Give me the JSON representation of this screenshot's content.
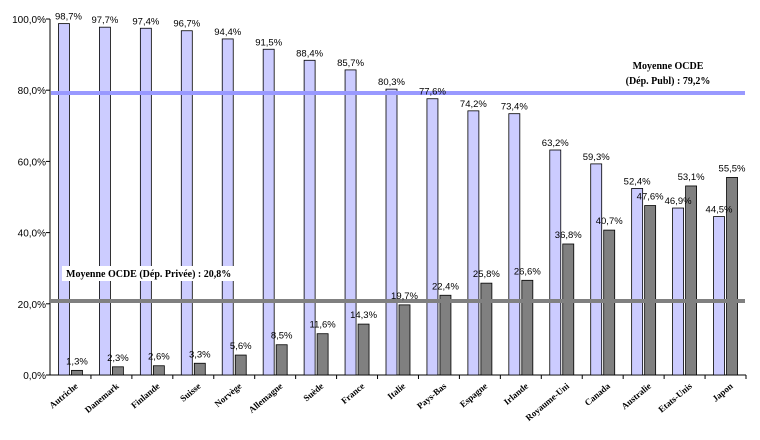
{
  "chart_data": {
    "type": "bar",
    "title": "",
    "xlabel": "",
    "ylabel": "",
    "ylim": [
      0,
      100
    ],
    "yticks": [
      "0,0%",
      "20,0%",
      "40,0%",
      "60,0%",
      "80,0%",
      "100,0%"
    ],
    "categories": [
      "Autriche",
      "Danemark",
      "Finlande",
      "Suisse",
      "Norvège",
      "Allemagne",
      "Suède",
      "France",
      "Italie",
      "Pays-Bas",
      "Espagne",
      "Irlande",
      "Royaume-Uni",
      "Canada",
      "Australie",
      "Etats-Unis",
      "Japon"
    ],
    "series": [
      {
        "color": "#ccccff",
        "values": [
          98.7,
          97.7,
          97.4,
          96.7,
          94.4,
          91.5,
          88.4,
          85.7,
          80.3,
          77.6,
          74.2,
          73.4,
          63.2,
          59.3,
          52.4,
          46.9,
          44.5
        ],
        "labels": [
          "98,7%",
          "97,7%",
          "97,4%",
          "96,7%",
          "94,4%",
          "91,5%",
          "88,4%",
          "85,7%",
          "80,3%",
          "77,6%",
          "74,2%",
          "73,4%",
          "63,2%",
          "59,3%",
          "52,4%",
          "46,9%",
          "44,5%"
        ]
      },
      {
        "color": "#808080",
        "values": [
          1.3,
          2.3,
          2.6,
          3.3,
          5.6,
          8.5,
          11.6,
          14.3,
          19.7,
          22.4,
          25.8,
          26.6,
          36.8,
          40.7,
          47.6,
          53.1,
          55.5
        ],
        "labels": [
          "1,3%",
          "2,3%",
          "2,6%",
          "3,3%",
          "5,6%",
          "8,5%",
          "11,6%",
          "14,3%",
          "19,7%",
          "22,4%",
          "25,8%",
          "26,6%",
          "36,8%",
          "40,7%",
          "47,6%",
          "53,1%",
          "55,5%"
        ]
      }
    ],
    "reference_lines": [
      {
        "value": 79.2,
        "color": "#9999ff",
        "label_line1": "Moyenne OCDE",
        "label_line2": "(Dép. Publ) : 79,2%"
      },
      {
        "value": 20.8,
        "color": "#808080",
        "label": "Moyenne OCDE (Dép. Privée) : 20,8%"
      }
    ],
    "grid": false,
    "legend": "none"
  }
}
